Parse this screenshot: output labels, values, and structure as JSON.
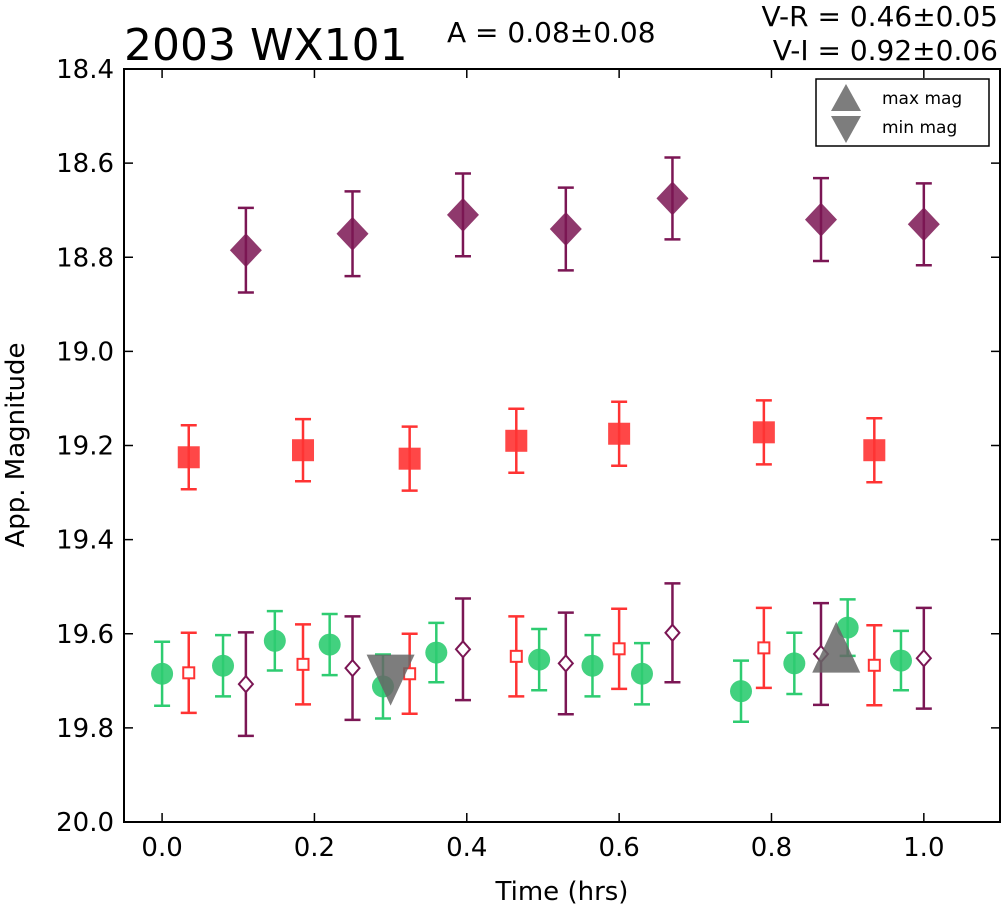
{
  "chart_data": {
    "type": "scatter",
    "title": "2003 WX101",
    "amplitude_label": "A  = 0.08±0.08",
    "color_label_1": "V-R = 0.46±0.05",
    "color_label_2": "V-I  = 0.92±0.06",
    "xlabel": "Time (hrs)",
    "ylabel": "App. Magnitude",
    "xlim": [
      -0.05,
      1.1
    ],
    "ylim": [
      20.0,
      18.4
    ],
    "y_inverted": true,
    "xticks": [
      "0.0",
      "0.2",
      "0.4",
      "0.6",
      "0.8",
      "1.0"
    ],
    "yticks": [
      "18.4",
      "18.6",
      "18.8",
      "19.0",
      "19.2",
      "19.4",
      "19.6",
      "19.8",
      "20.0"
    ],
    "grid": false,
    "legend_position": "top-right",
    "legend": [
      {
        "label": "max mag",
        "marker": "triangle-up"
      },
      {
        "label": "min mag",
        "marker": "triangle-down"
      }
    ],
    "colors": {
      "green": "#2ecc71",
      "red": "#ff3333",
      "purple": "#7b1654",
      "gray": "#666666"
    },
    "series": [
      {
        "marker": "diamond-filled",
        "color": "#7b1654",
        "points": [
          [
            0.11,
            18.785,
            0.09
          ],
          [
            0.25,
            18.75,
            0.09
          ],
          [
            0.395,
            18.71,
            0.088
          ],
          [
            0.53,
            18.74,
            0.088
          ],
          [
            0.67,
            18.675,
            0.087
          ],
          [
            0.865,
            18.72,
            0.088
          ],
          [
            1.0,
            18.73,
            0.087
          ]
        ]
      },
      {
        "marker": "square-filled",
        "color": "#ff3333",
        "points": [
          [
            0.035,
            19.225,
            0.068
          ],
          [
            0.185,
            19.21,
            0.066
          ],
          [
            0.325,
            19.228,
            0.068
          ],
          [
            0.465,
            19.19,
            0.068
          ],
          [
            0.6,
            19.175,
            0.068
          ],
          [
            0.79,
            19.172,
            0.068
          ],
          [
            0.935,
            19.21,
            0.068
          ]
        ]
      },
      {
        "marker": "circle-filled",
        "color": "#2ecc71",
        "points": [
          [
            0.0,
            19.685,
            0.068
          ],
          [
            0.08,
            19.668,
            0.065
          ],
          [
            0.148,
            19.615,
            0.063
          ],
          [
            0.22,
            19.623,
            0.065
          ],
          [
            0.29,
            19.712,
            0.068
          ],
          [
            0.36,
            19.64,
            0.063
          ],
          [
            0.495,
            19.655,
            0.065
          ],
          [
            0.565,
            19.668,
            0.065
          ],
          [
            0.63,
            19.685,
            0.065
          ],
          [
            0.76,
            19.722,
            0.065
          ],
          [
            0.83,
            19.663,
            0.065
          ],
          [
            0.9,
            19.587,
            0.06
          ],
          [
            0.97,
            19.657,
            0.063
          ]
        ]
      },
      {
        "marker": "square-open",
        "color": "#ff3333",
        "points": [
          [
            0.035,
            19.683,
            0.085
          ],
          [
            0.185,
            19.665,
            0.085
          ],
          [
            0.325,
            19.685,
            0.085
          ],
          [
            0.465,
            19.648,
            0.085
          ],
          [
            0.6,
            19.632,
            0.085
          ],
          [
            0.79,
            19.63,
            0.085
          ],
          [
            0.935,
            19.667,
            0.085
          ]
        ]
      },
      {
        "marker": "diamond-open",
        "color": "#7b1654",
        "points": [
          [
            0.11,
            19.707,
            0.11
          ],
          [
            0.25,
            19.673,
            0.11
          ],
          [
            0.395,
            19.633,
            0.108
          ],
          [
            0.53,
            19.663,
            0.108
          ],
          [
            0.67,
            19.598,
            0.105
          ],
          [
            0.865,
            19.643,
            0.108
          ],
          [
            1.0,
            19.652,
            0.107
          ]
        ]
      },
      {
        "marker": "triangle-down",
        "color": "#666666",
        "alpha": 0.85,
        "label": "min mag",
        "points": [
          [
            0.3,
            19.672,
            0
          ]
        ]
      },
      {
        "marker": "triangle-up",
        "color": "#666666",
        "alpha": 0.85,
        "label": "max mag",
        "points": [
          [
            0.885,
            19.655,
            0
          ]
        ]
      }
    ]
  }
}
